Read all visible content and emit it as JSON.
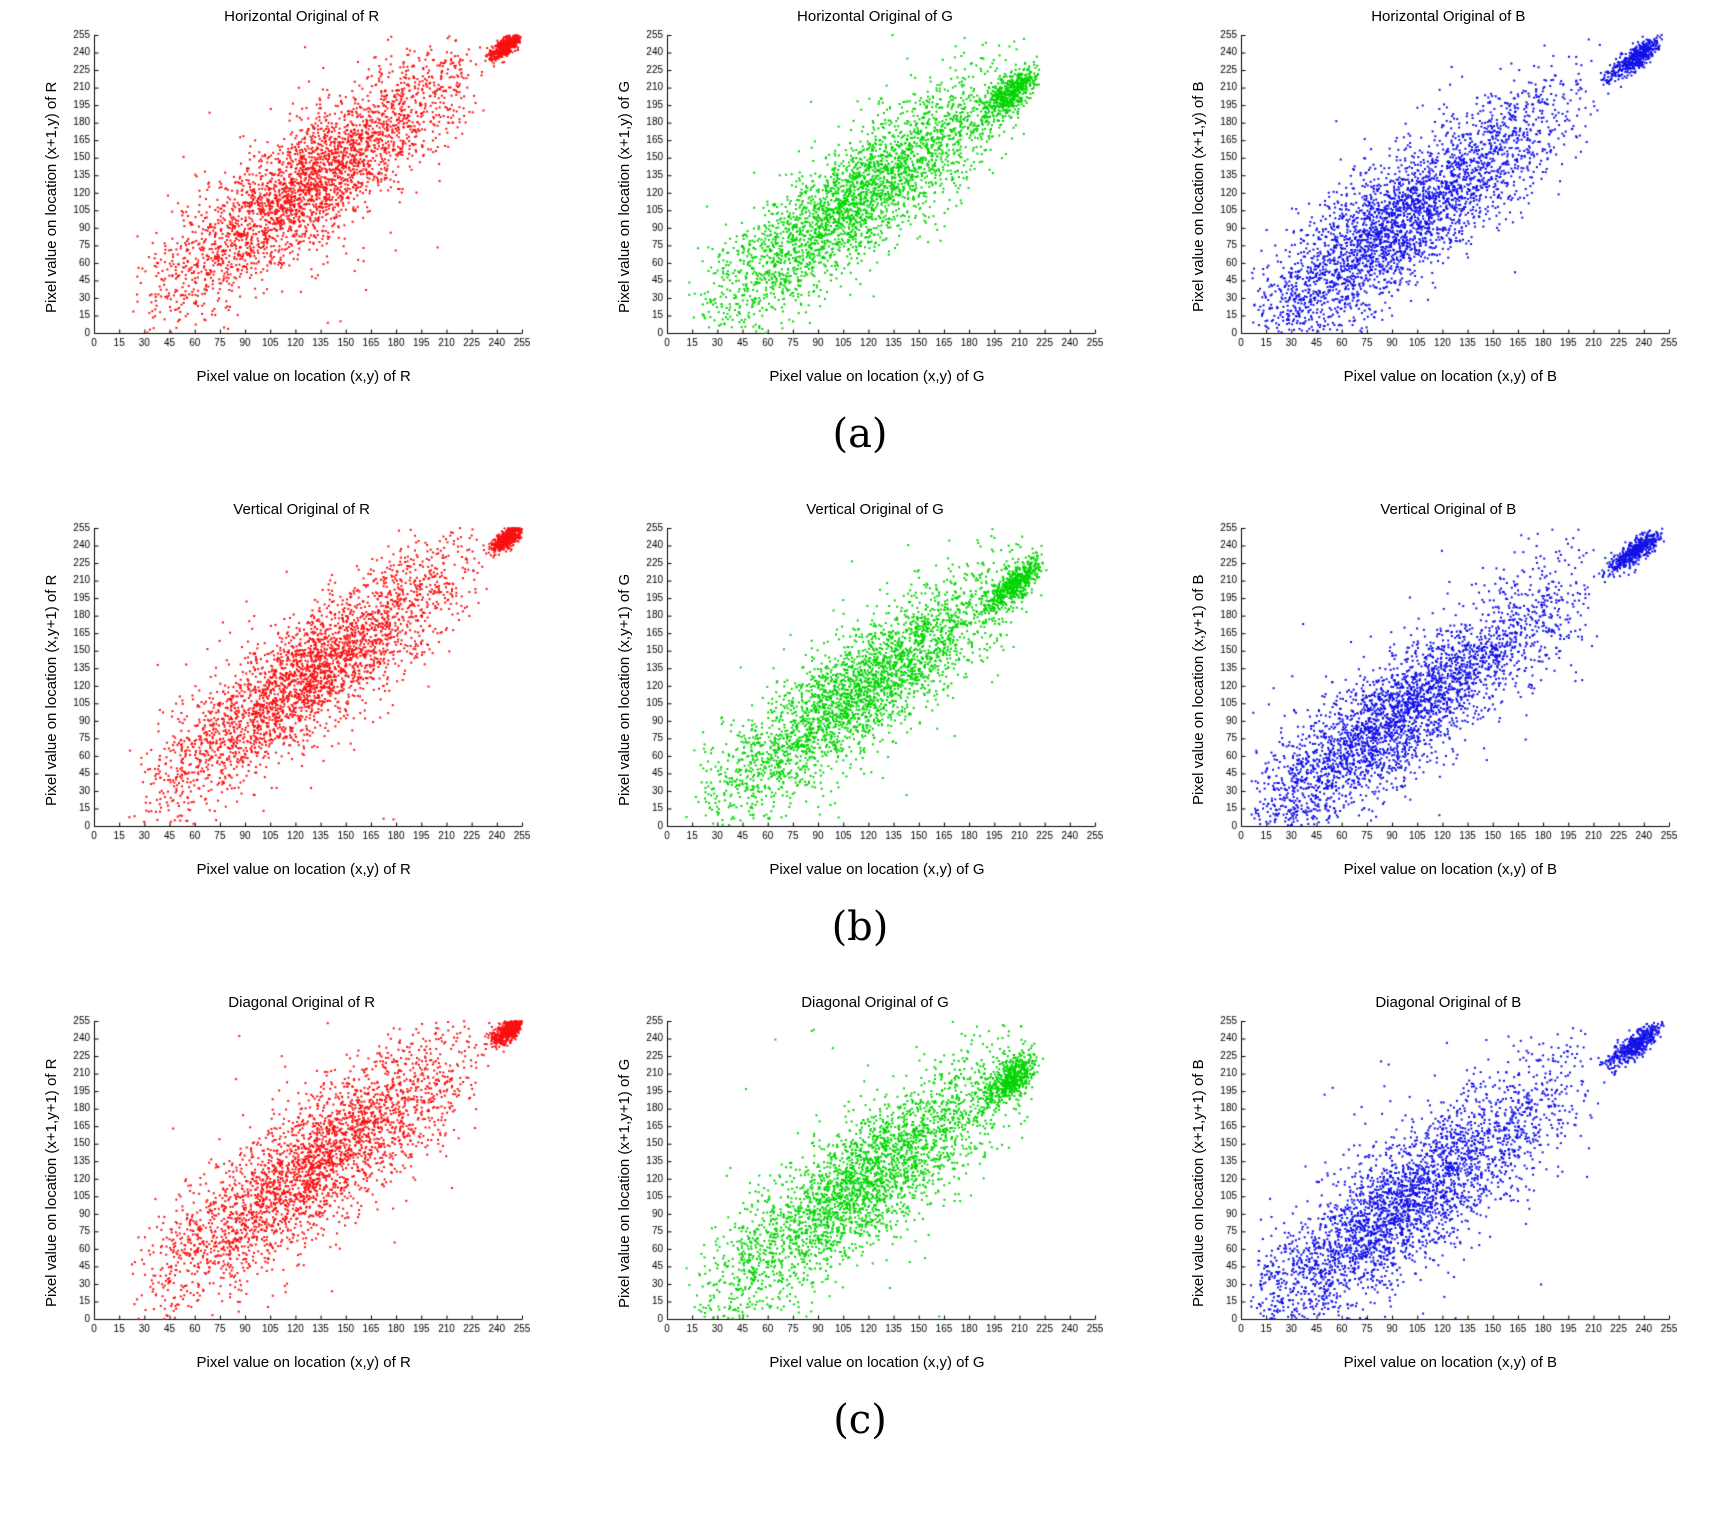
{
  "row_labels": [
    "(a)",
    "(b)",
    "(c)"
  ],
  "chart_data": [
    {
      "type": "scatter",
      "title": "Horizontal Original of R",
      "xlabel": "Pixel value on location (x,y) of R",
      "ylabel": "Pixel value on location (x+1,y) of R",
      "color": "#f81111",
      "xlim": [
        0,
        255
      ],
      "ylim": [
        0,
        255
      ],
      "tick_step": 15,
      "legend": false,
      "grid": false,
      "seed": 11,
      "components": [
        {
          "n": 2900,
          "lo": 20,
          "hi": 235,
          "pw": 0.97,
          "noise": 27
        },
        {
          "n": 520,
          "lo": 233,
          "hi": 255,
          "pw": 0.75,
          "noise": 4
        },
        {
          "n": 70,
          "lo": 20,
          "hi": 230,
          "pw": 1.0,
          "noise": 75
        }
      ]
    },
    {
      "type": "scatter",
      "title": "Horizontal Original of G",
      "xlabel": "Pixel value on location (x,y) of G",
      "ylabel": "Pixel value on location (x+1,y) of G",
      "color": "#00d500",
      "xlim": [
        0,
        255
      ],
      "ylim": [
        0,
        255
      ],
      "tick_step": 15,
      "legend": false,
      "grid": false,
      "seed": 22,
      "components": [
        {
          "n": 2900,
          "lo": 12,
          "hi": 218,
          "pw": 1.0,
          "noise": 26
        },
        {
          "n": 520,
          "lo": 183,
          "hi": 222,
          "pw": 0.8,
          "noise": 7
        },
        {
          "n": 70,
          "lo": 12,
          "hi": 215,
          "pw": 1.0,
          "noise": 70
        }
      ]
    },
    {
      "type": "scatter",
      "title": "Horizontal Original of B",
      "xlabel": "Pixel value on location (x,y) of B",
      "ylabel": "Pixel value on location (x+1,y) of B",
      "color": "#1111e8",
      "xlim": [
        0,
        255
      ],
      "ylim": [
        0,
        255
      ],
      "tick_step": 15,
      "legend": false,
      "grid": false,
      "seed": 33,
      "components": [
        {
          "n": 3100,
          "lo": 5,
          "hi": 215,
          "pw": 1.2,
          "noise": 27
        },
        {
          "n": 480,
          "lo": 212,
          "hi": 252,
          "pw": 0.8,
          "noise": 5
        },
        {
          "n": 80,
          "lo": 5,
          "hi": 215,
          "pw": 1.1,
          "noise": 70
        }
      ]
    },
    {
      "type": "scatter",
      "title": "Vertical Original of R",
      "xlabel": "Pixel value on location (x,y) of R",
      "ylabel": "Pixel value on location (x,y+1) of R",
      "color": "#f81111",
      "xlim": [
        0,
        255
      ],
      "ylim": [
        0,
        255
      ],
      "tick_step": 15,
      "legend": false,
      "grid": false,
      "seed": 44,
      "components": [
        {
          "n": 2900,
          "lo": 20,
          "hi": 235,
          "pw": 0.97,
          "noise": 26
        },
        {
          "n": 520,
          "lo": 233,
          "hi": 255,
          "pw": 0.75,
          "noise": 4
        },
        {
          "n": 65,
          "lo": 20,
          "hi": 230,
          "pw": 1.0,
          "noise": 72
        }
      ]
    },
    {
      "type": "scatter",
      "title": "Vertical Original of G",
      "xlabel": "Pixel value on location (x,y) of G",
      "ylabel": "Pixel value on location (x,y+1) of G",
      "color": "#00d500",
      "xlim": [
        0,
        255
      ],
      "ylim": [
        0,
        255
      ],
      "tick_step": 15,
      "legend": false,
      "grid": false,
      "seed": 55,
      "components": [
        {
          "n": 2900,
          "lo": 12,
          "hi": 218,
          "pw": 1.0,
          "noise": 25
        },
        {
          "n": 520,
          "lo": 183,
          "hi": 225,
          "pw": 0.8,
          "noise": 7
        },
        {
          "n": 60,
          "lo": 12,
          "hi": 215,
          "pw": 1.0,
          "noise": 65
        }
      ]
    },
    {
      "type": "scatter",
      "title": "Vertical Original of B",
      "xlabel": "Pixel value on location (x,y) of B",
      "ylabel": "Pixel value on location (x,y+1) of B",
      "color": "#1111e8",
      "xlim": [
        0,
        255
      ],
      "ylim": [
        0,
        255
      ],
      "tick_step": 15,
      "legend": false,
      "grid": false,
      "seed": 66,
      "components": [
        {
          "n": 3100,
          "lo": 5,
          "hi": 215,
          "pw": 1.2,
          "noise": 26
        },
        {
          "n": 480,
          "lo": 212,
          "hi": 252,
          "pw": 0.8,
          "noise": 5
        },
        {
          "n": 75,
          "lo": 5,
          "hi": 215,
          "pw": 1.1,
          "noise": 68
        }
      ]
    },
    {
      "type": "scatter",
      "title": "Diagonal Original of R",
      "xlabel": "Pixel value on location (x,y) of R",
      "ylabel": "Pixel value on location (x+1,y+1) of R",
      "color": "#f81111",
      "xlim": [
        0,
        255
      ],
      "ylim": [
        0,
        255
      ],
      "tick_step": 15,
      "legend": false,
      "grid": false,
      "seed": 77,
      "components": [
        {
          "n": 2900,
          "lo": 20,
          "hi": 235,
          "pw": 0.97,
          "noise": 29
        },
        {
          "n": 520,
          "lo": 233,
          "hi": 255,
          "pw": 0.75,
          "noise": 4.5
        },
        {
          "n": 75,
          "lo": 20,
          "hi": 230,
          "pw": 1.0,
          "noise": 78
        }
      ]
    },
    {
      "type": "scatter",
      "title": "Diagonal Original of G",
      "xlabel": "Pixel value on location (x,y) of G",
      "ylabel": "Pixel value on location (x+1,y+1) of G",
      "color": "#00d500",
      "xlim": [
        0,
        255
      ],
      "ylim": [
        0,
        255
      ],
      "tick_step": 15,
      "legend": false,
      "grid": false,
      "seed": 88,
      "components": [
        {
          "n": 2900,
          "lo": 12,
          "hi": 218,
          "pw": 1.0,
          "noise": 28
        },
        {
          "n": 520,
          "lo": 183,
          "hi": 222,
          "pw": 0.8,
          "noise": 8
        },
        {
          "n": 75,
          "lo": 12,
          "hi": 215,
          "pw": 1.0,
          "noise": 72
        }
      ]
    },
    {
      "type": "scatter",
      "title": "Diagonal Original of B",
      "xlabel": "Pixel value on location (x,y) of B",
      "ylabel": "Pixel value on location (x+1,y+1) of B",
      "color": "#1111e8",
      "xlim": [
        0,
        255
      ],
      "ylim": [
        0,
        255
      ],
      "tick_step": 15,
      "legend": false,
      "grid": false,
      "seed": 99,
      "components": [
        {
          "n": 3100,
          "lo": 5,
          "hi": 215,
          "pw": 1.2,
          "noise": 29
        },
        {
          "n": 480,
          "lo": 212,
          "hi": 252,
          "pw": 0.8,
          "noise": 5.5
        },
        {
          "n": 85,
          "lo": 5,
          "hi": 215,
          "pw": 1.1,
          "noise": 72
        }
      ]
    }
  ]
}
